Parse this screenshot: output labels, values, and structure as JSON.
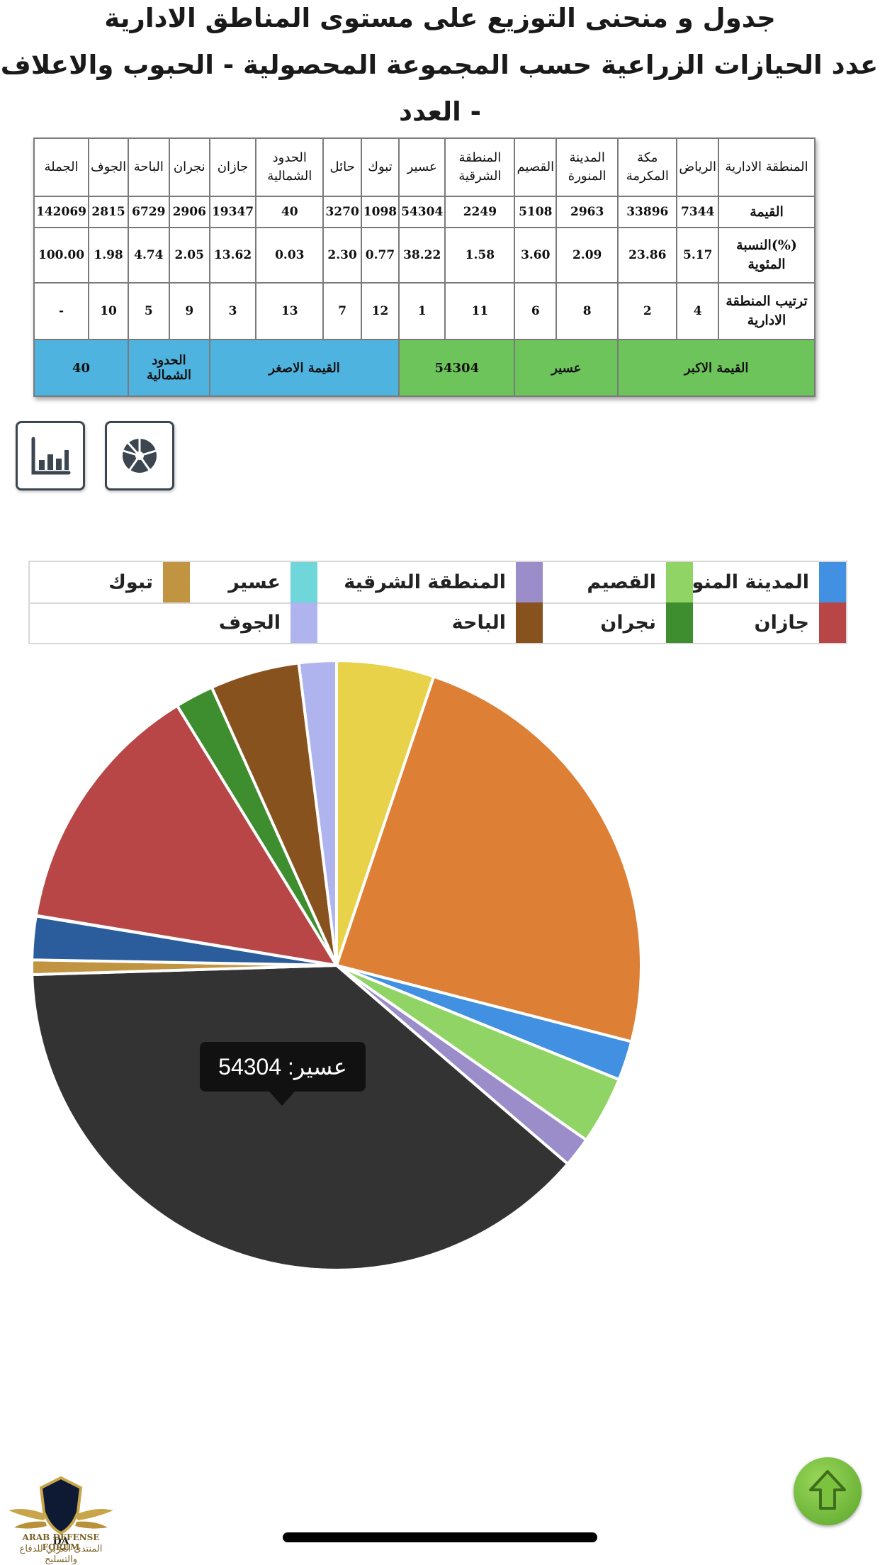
{
  "titles": {
    "line1": "جدول و منحنى التوزيع على مستوى المناطق الادارية",
    "line2": "عدد الحيازات الزراعية حسب المجموعة المحصولية - الحبوب والاعلاف",
    "line3": "- العدد"
  },
  "table": {
    "row_labels": {
      "header": "المنطقة الادارية",
      "value": "القيمة",
      "percent": "(%)النسبة المئوية",
      "rank": "ترتيب المنطقة الادارية"
    },
    "regions": [
      "الرياض",
      "مكة المكرمة",
      "المدينة المنورة",
      "القصيم",
      "المنطقة الشرقية",
      "عسير",
      "تبوك",
      "حائل",
      "الحدود الشمالية",
      "جازان",
      "نجران",
      "الباحة",
      "الجوف",
      "الجملة"
    ],
    "values": [
      "7344",
      "33896",
      "2963",
      "5108",
      "2249",
      "54304",
      "1098",
      "3270",
      "40",
      "19347",
      "2906",
      "6729",
      "2815",
      "142069"
    ],
    "percents": [
      "5.17",
      "23.86",
      "2.09",
      "3.60",
      "1.58",
      "38.22",
      "0.77",
      "2.30",
      "0.03",
      "13.62",
      "2.05",
      "4.74",
      "1.98",
      "100.00"
    ],
    "ranks": [
      "4",
      "2",
      "8",
      "6",
      "11",
      "1",
      "12",
      "7",
      "13",
      "3",
      "9",
      "5",
      "10",
      "-"
    ],
    "summary": {
      "max_label": "القيمة الاكبر",
      "max_region": "عسير",
      "max_value": "54304",
      "min_label": "القيمة الاصغر",
      "min_region": "الحدود الشمالية",
      "min_value": "40"
    },
    "colors": {
      "max_bg": "#6dc45a",
      "min_bg": "#4fb3e0"
    }
  },
  "buttons": {
    "bar_chart_icon": "bar-chart-icon",
    "pie_chart_icon": "pie-chart-icon"
  },
  "chart_data": {
    "type": "pie",
    "legend_position": "top",
    "slices": [
      {
        "label": "الرياض",
        "value": 7344,
        "color": "#e8d24a"
      },
      {
        "label": "مكة المكرمة",
        "value": 33896,
        "color": "#dd7f35"
      },
      {
        "label": "المدينة المنورة",
        "value": 2963,
        "color": "#4190e2"
      },
      {
        "label": "القصيم",
        "value": 5108,
        "color": "#8fd464"
      },
      {
        "label": "المنطقة الشرقية",
        "value": 2249,
        "color": "#9b8dc9"
      },
      {
        "label": "عسير",
        "value": 54304,
        "color": "#333333"
      },
      {
        "label": "تبوك",
        "value": 1098,
        "color": "#c09440"
      },
      {
        "label": "حائل",
        "value": 3270,
        "color": "#2b5c9c"
      },
      {
        "label": "الحدود الشمالية",
        "value": 40,
        "color": "#e8e8e8"
      },
      {
        "label": "جازان",
        "value": 19347,
        "color": "#b84646"
      },
      {
        "label": "نجران",
        "value": 2906,
        "color": "#3e8e30"
      },
      {
        "label": "الباحة",
        "value": 6729,
        "color": "#87521d"
      },
      {
        "label": "الجوف",
        "value": 2815,
        "color": "#b0b4ee"
      }
    ],
    "legend": [
      {
        "label": "المدينة المنورة",
        "color": "#4190e2"
      },
      {
        "label": "القصيم",
        "color": "#8fd464"
      },
      {
        "label": "المنطقة الشرقية",
        "color": "#9b8dc9"
      },
      {
        "label": "عسير",
        "color": "#6fd6da"
      },
      {
        "label": "تبوك",
        "color": "#c09440"
      },
      {
        "label": "جازان",
        "color": "#b84646"
      },
      {
        "label": "نجران",
        "color": "#3e8e30"
      },
      {
        "label": "الباحة",
        "color": "#87521d"
      },
      {
        "label": "الجوف",
        "color": "#b0b4ee"
      }
    ],
    "tooltip": "عسير: 54304"
  },
  "footer": {
    "logo_en": "ARAB DEFENSE FORUM",
    "logo_ar": "المنتدى العربي للدفاع والتسليح",
    "logo_mark": "DA",
    "up_icon": "arrow-up-icon"
  }
}
